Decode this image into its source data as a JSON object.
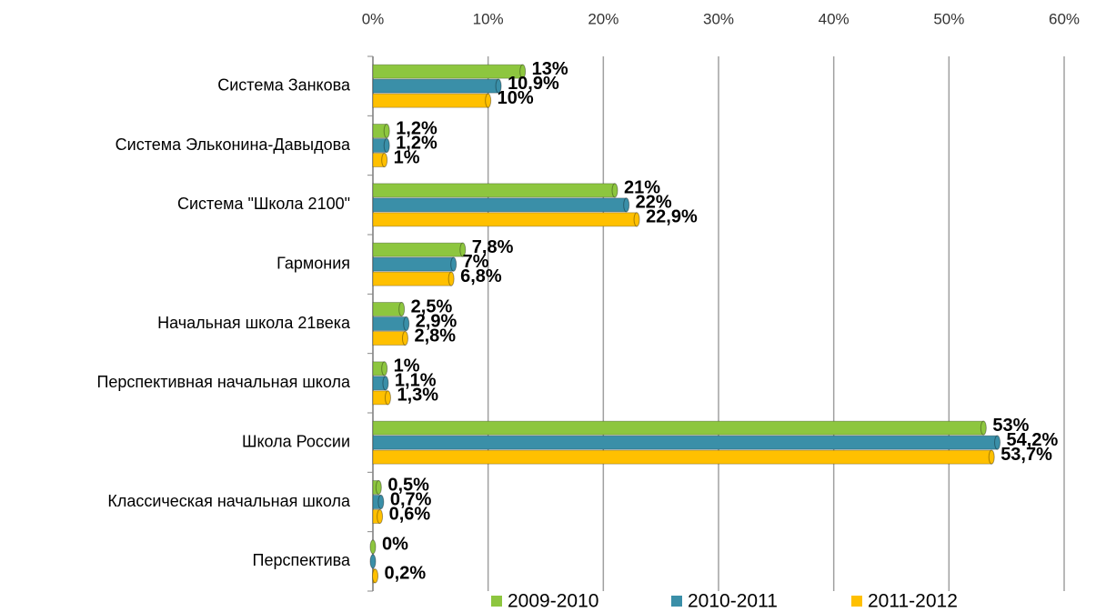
{
  "chart_data": {
    "type": "barh",
    "categories": [
      "Система Занкова",
      "Система Эльконина-Давыдова",
      "Система \"Школа 2100\"",
      "Гармония",
      "Начальная школа 21века",
      "Перспективная начальная школа",
      "Школа России",
      "Классическая начальная школа",
      "Перспектива"
    ],
    "series": [
      {
        "name": "2009-2010",
        "color": "#8dc63f",
        "values": [
          13,
          1.2,
          21,
          7.8,
          2.5,
          1,
          53,
          0.5,
          0
        ],
        "value_labels": [
          "13%",
          "1,2%",
          "21%",
          "7,8%",
          "2,5%",
          "1%",
          "53%",
          "0,5%",
          "0%"
        ]
      },
      {
        "name": "2010-2011",
        "color": "#3a8fa8",
        "values": [
          10.9,
          1.2,
          22,
          7,
          2.9,
          1.1,
          54.2,
          0.7,
          0
        ],
        "value_labels": [
          "10,9%",
          "1,2%",
          "22%",
          "7%",
          "2,9%",
          "1,1%",
          "54,2%",
          "0,7%",
          null
        ]
      },
      {
        "name": "2011-2012",
        "color": "#ffc000",
        "values": [
          10,
          1,
          22.9,
          6.8,
          2.8,
          1.3,
          53.7,
          0.6,
          0.2
        ],
        "value_labels": [
          "10%",
          "1%",
          "22,9%",
          "6,8%",
          "2,8%",
          "1,3%",
          "53,7%",
          "0,6%",
          "0,2%"
        ]
      }
    ],
    "xlim": [
      0,
      60
    ],
    "xticks": [
      {
        "value": 0,
        "label": "0%"
      },
      {
        "value": 10,
        "label": "10%"
      },
      {
        "value": 20,
        "label": "20%"
      },
      {
        "value": 30,
        "label": "30%"
      },
      {
        "value": 40,
        "label": "40%"
      },
      {
        "value": 50,
        "label": "50%"
      },
      {
        "value": 60,
        "label": "60%"
      }
    ],
    "grid": true,
    "legend": "bottom"
  }
}
